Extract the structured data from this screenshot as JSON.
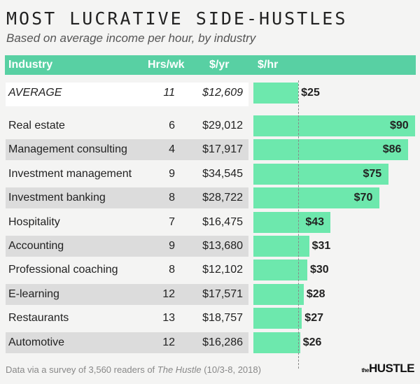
{
  "chart_data": {
    "type": "bar",
    "title": "MOST LUCRATIVE SIDE-HUSTLES",
    "subtitle": "Based on average income per hour, by industry",
    "columns": [
      "Industry",
      "Hrs/wk",
      "$/yr",
      "$/hr"
    ],
    "average": {
      "label": "AVERAGE",
      "hrs": "11",
      "yr": "$12,609",
      "hr": 25,
      "hr_label": "$25"
    },
    "rows": [
      {
        "label": "Real estate",
        "hrs": "6",
        "yr": "$29,012",
        "hr": 90,
        "hr_label": "$90"
      },
      {
        "label": "Management consulting",
        "hrs": "4",
        "yr": "$17,917",
        "hr": 86,
        "hr_label": "$86"
      },
      {
        "label": "Investment management",
        "hrs": "9",
        "yr": "$34,545",
        "hr": 75,
        "hr_label": "$75"
      },
      {
        "label": "Investment banking",
        "hrs": "8",
        "yr": "$28,722",
        "hr": 70,
        "hr_label": "$70"
      },
      {
        "label": "Hospitality",
        "hrs": "7",
        "yr": "$16,475",
        "hr": 43,
        "hr_label": "$43"
      },
      {
        "label": "Accounting",
        "hrs": "9",
        "yr": "$13,680",
        "hr": 31,
        "hr_label": "$31"
      },
      {
        "label": "Professional coaching",
        "hrs": "8",
        "yr": "$12,102",
        "hr": 30,
        "hr_label": "$30"
      },
      {
        "label": "E-learning",
        "hrs": "12",
        "yr": "$17,571",
        "hr": 28,
        "hr_label": "$28"
      },
      {
        "label": "Restaurants",
        "hrs": "13",
        "yr": "$18,757",
        "hr": 27,
        "hr_label": "$27"
      },
      {
        "label": "Automotive",
        "hrs": "12",
        "yr": "$16,286",
        "hr": 26,
        "hr_label": "$26"
      }
    ],
    "xlim": [
      0,
      90
    ],
    "colors": {
      "bar": "#6de8ad",
      "header": "#58d0a3"
    }
  },
  "footer": {
    "pre": "Data via a survey of 3,560 readers of ",
    "source": "The Hustle",
    "post": " (10/3-8, 2018)"
  },
  "logo": {
    "small": "the",
    "big": "HUSTLE"
  }
}
